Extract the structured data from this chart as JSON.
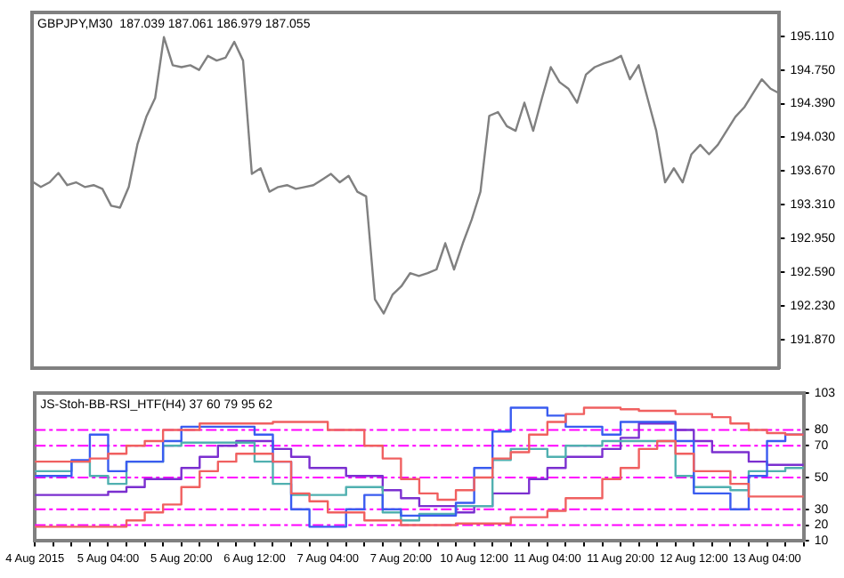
{
  "chart_data": [
    {
      "type": "line",
      "title": "GBPJPY,M30  187.039 187.061 186.979 187.055",
      "categories": [
        null,
        null,
        null,
        null,
        null,
        null,
        null,
        null,
        null,
        null,
        null,
        null,
        null,
        null,
        null,
        null,
        null,
        null,
        null,
        null,
        null,
        null,
        null,
        null,
        null,
        null,
        null,
        null,
        null,
        null,
        null,
        null,
        null,
        null,
        null,
        null,
        null,
        null,
        null,
        null,
        null,
        null,
        null,
        null,
        null,
        null,
        null,
        null,
        null,
        null,
        null,
        null,
        null,
        null,
        null,
        null,
        null,
        null,
        null,
        null,
        null,
        null,
        null,
        null,
        null,
        null,
        null,
        null,
        null,
        null,
        null,
        null,
        null,
        null,
        null,
        null,
        null,
        null,
        null,
        null,
        null,
        null,
        null,
        null,
        null,
        null
      ],
      "values": [
        193.56,
        193.5,
        193.55,
        193.65,
        193.52,
        193.55,
        193.5,
        193.52,
        193.48,
        193.3,
        193.28,
        193.5,
        193.96,
        194.25,
        194.45,
        195.1,
        194.8,
        194.78,
        194.8,
        194.75,
        194.9,
        194.85,
        194.88,
        195.05,
        194.85,
        193.64,
        193.7,
        193.45,
        193.5,
        193.52,
        193.48,
        193.5,
        193.52,
        193.58,
        193.64,
        193.55,
        193.62,
        193.45,
        193.4,
        192.3,
        192.15,
        192.35,
        192.44,
        192.58,
        192.55,
        192.58,
        192.62,
        192.9,
        192.62,
        192.9,
        193.15,
        193.45,
        194.26,
        194.3,
        194.15,
        194.1,
        194.4,
        194.1,
        194.45,
        194.78,
        194.62,
        194.55,
        194.4,
        194.7,
        194.78,
        194.82,
        194.85,
        194.9,
        194.65,
        194.8,
        194.45,
        194.1,
        193.55,
        193.7,
        193.55,
        193.85,
        193.95,
        193.85,
        193.95,
        194.1,
        194.25,
        194.35,
        194.5,
        194.65,
        194.55,
        194.5
      ],
      "color": "#808080",
      "ylim": [
        191.57,
        195.36
      ],
      "yticks": [
        {
          "value": 195.11,
          "label": "195.110"
        },
        {
          "value": 194.75,
          "label": "194.750"
        },
        {
          "value": 194.39,
          "label": "194.390"
        },
        {
          "value": 194.03,
          "label": "194.030"
        },
        {
          "value": 193.67,
          "label": "193.670"
        },
        {
          "value": 193.31,
          "label": "193.310"
        },
        {
          "value": 192.95,
          "label": "192.950"
        },
        {
          "value": 192.59,
          "label": "192.590"
        },
        {
          "value": 192.23,
          "label": "192.230"
        },
        {
          "value": 191.87,
          "label": "191.870"
        }
      ],
      "tick_labels": "y"
    },
    {
      "type": "step",
      "title": "JS-Stoh-BB-RSI_HTF(H4) 37 60 79 95 62",
      "categories": [
        "4 Aug 2015",
        null,
        null,
        null,
        "5 Aug 04:00",
        null,
        null,
        null,
        "5 Aug 20:00",
        null,
        null,
        null,
        "6 Aug 12:00",
        null,
        null,
        null,
        "7 Aug 04:00",
        null,
        null,
        null,
        "7 Aug 20:00",
        null,
        null,
        null,
        "10 Aug 12:00",
        null,
        null,
        null,
        "11 Aug 04:00",
        null,
        null,
        null,
        "11 Aug 20:00",
        null,
        null,
        null,
        "12 Aug 12:00",
        null,
        null,
        null,
        "13 Aug 04:00",
        null,
        null
      ],
      "series": [
        {
          "color": "#f06060",
          "values": [
            60,
            60,
            60,
            62,
            65,
            70,
            73,
            80,
            80,
            84,
            84,
            84,
            84,
            85,
            85,
            85,
            80,
            80,
            70,
            62,
            49,
            40,
            36,
            42,
            50,
            62,
            66,
            77,
            85,
            90,
            94,
            94,
            93,
            92,
            92,
            90,
            90,
            88,
            84,
            80,
            78,
            77,
            77
          ]
        },
        {
          "color": "#f06060",
          "values": [
            19,
            19,
            19,
            19,
            19,
            23,
            28,
            33,
            44,
            54,
            60,
            65,
            65,
            60,
            40,
            35,
            28,
            28,
            23,
            23,
            20,
            20,
            20,
            21,
            21,
            21,
            25,
            25,
            29,
            37,
            37,
            49,
            56,
            68,
            73,
            65,
            54,
            54,
            46,
            38,
            38,
            38,
            38
          ]
        },
        {
          "color": "#3a5cf0",
          "values": [
            51,
            51,
            61,
            77,
            54,
            60,
            60,
            73,
            82,
            82,
            82,
            82,
            77,
            60,
            30,
            19,
            19,
            30,
            39,
            30,
            26,
            26,
            26,
            34,
            56,
            79,
            94,
            94,
            89,
            82,
            82,
            77,
            85,
            85,
            85,
            73,
            40,
            40,
            30,
            51,
            73,
            77,
            77
          ]
        },
        {
          "color": "#50b0b0",
          "values": [
            54,
            54,
            60,
            51,
            46,
            60,
            60,
            70,
            72,
            72,
            72,
            72,
            60,
            46,
            39,
            39,
            39,
            44,
            44,
            28,
            23,
            27,
            27,
            32,
            32,
            61,
            68,
            68,
            63,
            70,
            70,
            73,
            73,
            73,
            73,
            51,
            44,
            44,
            42,
            54,
            54,
            56,
            56
          ]
        },
        {
          "color": "#7b2fd0",
          "values": [
            39,
            39,
            39,
            39,
            41,
            44,
            49,
            49,
            56,
            63,
            70,
            73,
            73,
            68,
            63,
            56,
            56,
            51,
            51,
            42,
            37,
            32,
            32,
            28,
            32,
            40,
            40,
            49,
            56,
            63,
            63,
            68,
            75,
            84,
            84,
            80,
            73,
            66,
            66,
            60,
            58,
            58,
            58
          ]
        }
      ],
      "ylim": [
        10,
        103
      ],
      "yticks": [
        103,
        80,
        70,
        50,
        30,
        20,
        10
      ],
      "ref_lines": [
        {
          "axis": "y",
          "value": 80,
          "color": "#ff00ff",
          "line_style": "dashed"
        },
        {
          "axis": "y",
          "value": 70,
          "color": "#ff00ff",
          "line_style": "dashed"
        },
        {
          "axis": "y",
          "value": 50,
          "color": "#ff00ff",
          "line_style": "dashed"
        },
        {
          "axis": "y",
          "value": 30,
          "color": "#ff00ff",
          "line_style": "dashed"
        },
        {
          "axis": "y",
          "value": 20,
          "color": "#ff00ff",
          "line_style": "dashed"
        }
      ]
    }
  ]
}
